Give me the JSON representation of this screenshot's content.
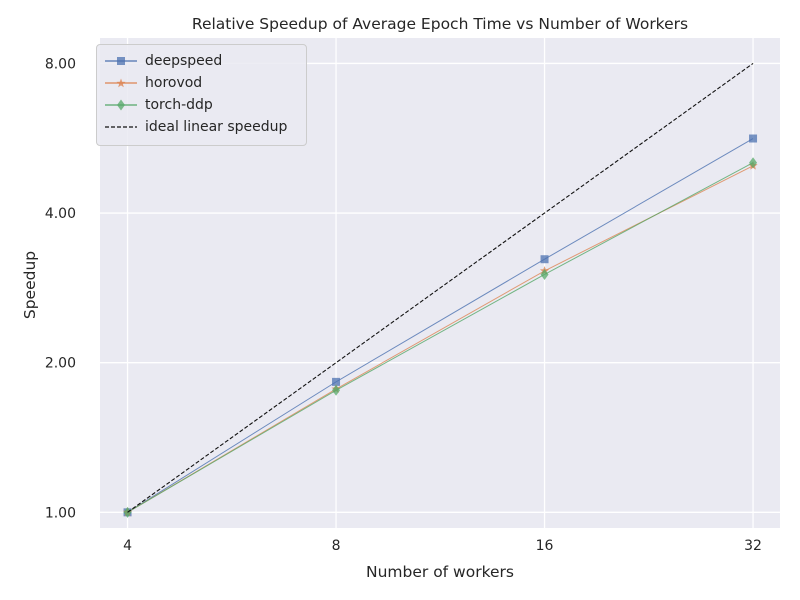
{
  "chart_data": {
    "type": "line",
    "title": "Relative Speedup of Average Epoch Time vs Number of Workers",
    "xlabel": "Number of workers",
    "ylabel": "Speedup",
    "x": [
      4,
      8,
      16,
      32
    ],
    "x_tick_labels": [
      "4",
      "8",
      "16",
      "32"
    ],
    "y_ticks": [
      1,
      2,
      4,
      8
    ],
    "y_tick_labels": [
      "1.00",
      "2.00",
      "4.00",
      "8.00"
    ],
    "xscale": "log2",
    "yscale": "log2",
    "xlim": [
      3.65,
      35.0
    ],
    "ylim": [
      0.93,
      9.0
    ],
    "grid": true,
    "legend_position": "top-left",
    "series": [
      {
        "name": "deepspeed",
        "values": [
          1.0,
          1.83,
          3.23,
          5.65
        ],
        "color": "#4c72b0",
        "marker": "square",
        "linestyle": "solid"
      },
      {
        "name": "horovod",
        "values": [
          1.0,
          1.77,
          3.06,
          4.98
        ],
        "color": "#dd8452",
        "marker": "star",
        "linestyle": "solid"
      },
      {
        "name": "torch-ddp",
        "values": [
          1.0,
          1.76,
          3.01,
          5.05
        ],
        "color": "#55a868",
        "marker": "diamond",
        "linestyle": "solid"
      },
      {
        "name": "ideal linear speedup",
        "values": [
          1,
          2,
          4,
          8
        ],
        "color": "#111111",
        "marker": "none",
        "linestyle": "dashed"
      }
    ]
  }
}
